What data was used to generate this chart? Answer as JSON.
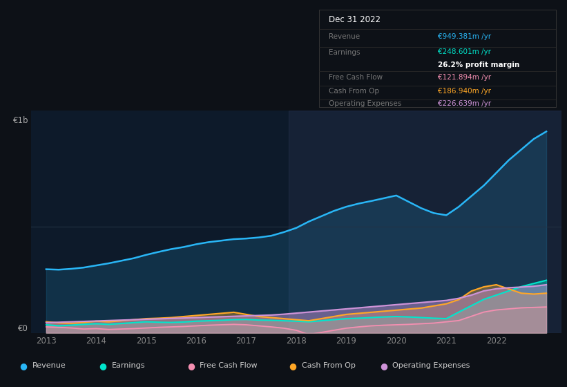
{
  "bg_color": "#0d1117",
  "chart_bg": "#0d1a2a",
  "years": [
    2013,
    2013.25,
    2013.5,
    2013.75,
    2014,
    2014.25,
    2014.5,
    2014.75,
    2015,
    2015.25,
    2015.5,
    2015.75,
    2016,
    2016.25,
    2016.5,
    2016.75,
    2017,
    2017.25,
    2017.5,
    2017.75,
    2018,
    2018.25,
    2018.5,
    2018.75,
    2019,
    2019.25,
    2019.5,
    2019.75,
    2020,
    2020.25,
    2020.5,
    2020.75,
    2021,
    2021.25,
    2021.5,
    2021.75,
    2022,
    2022.25,
    2022.5,
    2022.75,
    2023
  ],
  "revenue": [
    300,
    298,
    302,
    308,
    318,
    328,
    340,
    352,
    368,
    382,
    395,
    405,
    418,
    428,
    435,
    442,
    445,
    450,
    458,
    475,
    495,
    525,
    550,
    575,
    595,
    610,
    622,
    635,
    648,
    618,
    588,
    565,
    555,
    595,
    645,
    695,
    755,
    815,
    865,
    915,
    950
  ],
  "earnings": [
    38,
    33,
    36,
    40,
    43,
    40,
    44,
    48,
    52,
    50,
    49,
    51,
    55,
    57,
    59,
    62,
    63,
    60,
    59,
    57,
    55,
    52,
    57,
    62,
    67,
    69,
    72,
    75,
    77,
    75,
    72,
    69,
    67,
    98,
    128,
    158,
    178,
    198,
    218,
    233,
    248
  ],
  "free_cash_flow": [
    28,
    26,
    23,
    18,
    20,
    16,
    18,
    20,
    23,
    26,
    28,
    30,
    33,
    36,
    38,
    40,
    38,
    33,
    28,
    22,
    12,
    -8,
    2,
    12,
    22,
    28,
    33,
    36,
    38,
    40,
    43,
    46,
    52,
    58,
    78,
    98,
    108,
    113,
    118,
    120,
    122
  ],
  "cash_from_op": [
    52,
    47,
    45,
    49,
    55,
    52,
    57,
    62,
    67,
    69,
    72,
    77,
    82,
    87,
    92,
    97,
    87,
    77,
    72,
    67,
    62,
    57,
    67,
    77,
    87,
    92,
    97,
    102,
    107,
    112,
    117,
    127,
    137,
    157,
    197,
    217,
    227,
    207,
    187,
    183,
    187
  ],
  "op_expenses": [
    48,
    50,
    52,
    54,
    56,
    58,
    60,
    62,
    64,
    66,
    68,
    70,
    72,
    74,
    76,
    78,
    80,
    82,
    84,
    88,
    93,
    98,
    103,
    108,
    113,
    118,
    123,
    128,
    133,
    138,
    143,
    148,
    153,
    163,
    178,
    198,
    208,
    213,
    216,
    220,
    227
  ],
  "revenue_color": "#29b6f6",
  "earnings_color": "#00e5cc",
  "fcf_color": "#f48fb1",
  "cashop_color": "#ffa726",
  "opex_color": "#ce93d8",
  "info_box": {
    "date": "Dec 31 2022",
    "revenue_label": "Revenue",
    "revenue_val": "€949.381m /yr",
    "earnings_label": "Earnings",
    "earnings_val": "€248.601m /yr",
    "profit_margin": "26.2% profit margin",
    "fcf_label": "Free Cash Flow",
    "fcf_val": "€121.894m /yr",
    "cashop_label": "Cash From Op",
    "cashop_val": "€186.940m /yr",
    "opex_label": "Operating Expenses",
    "opex_val": "€226.639m /yr"
  },
  "legend_items": [
    {
      "label": "Revenue",
      "color": "#29b6f6"
    },
    {
      "label": "Earnings",
      "color": "#00e5cc"
    },
    {
      "label": "Free Cash Flow",
      "color": "#f48fb1"
    },
    {
      "label": "Cash From Op",
      "color": "#ffa726"
    },
    {
      "label": "Operating Expenses",
      "color": "#ce93d8"
    }
  ],
  "xticks": [
    2013,
    2014,
    2015,
    2016,
    2017,
    2018,
    2019,
    2020,
    2021,
    2022
  ],
  "ylim": [
    0,
    1050
  ],
  "xlim": [
    2012.7,
    2023.3
  ],
  "shade_start": 2017.85
}
